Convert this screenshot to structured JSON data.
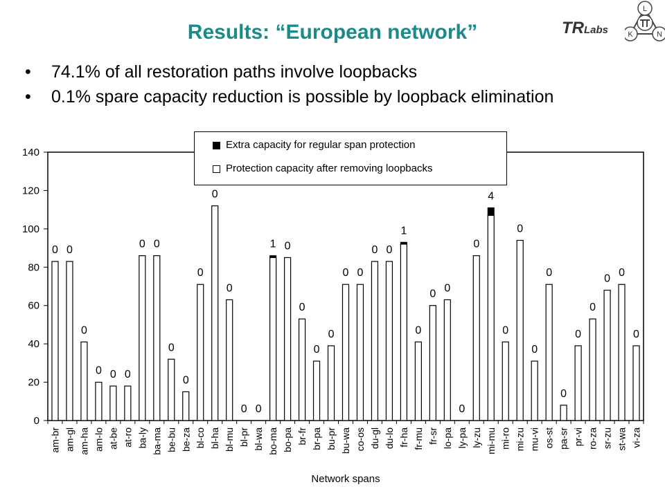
{
  "slide": {
    "title": "Results: “European network”",
    "bullets": [
      "74.1% of all restoration paths involve loopbacks",
      "0.1% spare capacity reduction is possible by loopback elimination"
    ],
    "bullet_glyph": "•"
  },
  "logo": {
    "brand_main": "TR",
    "brand_sub": "Labs",
    "knot_letters": [
      "L",
      "K",
      "N"
    ],
    "icon": "tum-knot-logo"
  },
  "chart_data": {
    "type": "bar",
    "stacked": true,
    "xlabel": "Network spans",
    "ylabel": "",
    "ylim": [
      0,
      140
    ],
    "yticks": [
      0,
      20,
      40,
      60,
      80,
      100,
      120,
      140
    ],
    "grid": false,
    "legend_position": "top-center",
    "categories": [
      "am-br",
      "am-gl",
      "am-ha",
      "am-lo",
      "at-be",
      "at-ro",
      "ba-ly",
      "ba-ma",
      "be-bu",
      "be-za",
      "bl-co",
      "bl-ha",
      "bl-mu",
      "bl-pr",
      "bl-wa",
      "bo-ma",
      "bo-pa",
      "br-fr",
      "br-pa",
      "bu-pr",
      "bu-wa",
      "co-os",
      "du-gl",
      "du-lo",
      "fr-ha",
      "fr-mu",
      "fr-sr",
      "lo-pa",
      "ly-pa",
      "ly-zu",
      "mi-mu",
      "mi-ro",
      "mi-zu",
      "mu-vi",
      "os-st",
      "pa-sr",
      "pr-vi",
      "ro-za",
      "sr-zu",
      "st-wa",
      "vi-za"
    ],
    "series": [
      {
        "name": "Protection capacity after removing loopbacks",
        "color": "#ffffff",
        "values": [
          83,
          83,
          41,
          20,
          18,
          18,
          86,
          86,
          32,
          15,
          71,
          112,
          63,
          0,
          0,
          85,
          85,
          53,
          31,
          39,
          71,
          71,
          83,
          83,
          92,
          41,
          60,
          63,
          0,
          86,
          107,
          41,
          94,
          31,
          71,
          8,
          39,
          53,
          68,
          71,
          39
        ]
      },
      {
        "name": "Extra capacity for regular span protection",
        "color": "#000000",
        "values": [
          0,
          0,
          0,
          0,
          0,
          0,
          0,
          0,
          0,
          0,
          0,
          0,
          0,
          0,
          0,
          1,
          0,
          0,
          0,
          0,
          0,
          0,
          0,
          0,
          1,
          0,
          0,
          0,
          0,
          0,
          4,
          0,
          0,
          0,
          0,
          0,
          0,
          0,
          0,
          0,
          0
        ]
      }
    ],
    "data_labels": [
      "0",
      "0",
      "0",
      "0",
      "0",
      "0",
      "0",
      "0",
      "0",
      "0",
      "0",
      "0",
      "0",
      "0",
      "0",
      "1",
      "0",
      "0",
      "0",
      "0",
      "0",
      "0",
      "0",
      "0",
      "1",
      "0",
      "0",
      "0",
      "0",
      "0",
      "4",
      "0",
      "0",
      "0",
      "0",
      "0",
      "0",
      "0",
      "0",
      "0",
      "0"
    ]
  }
}
